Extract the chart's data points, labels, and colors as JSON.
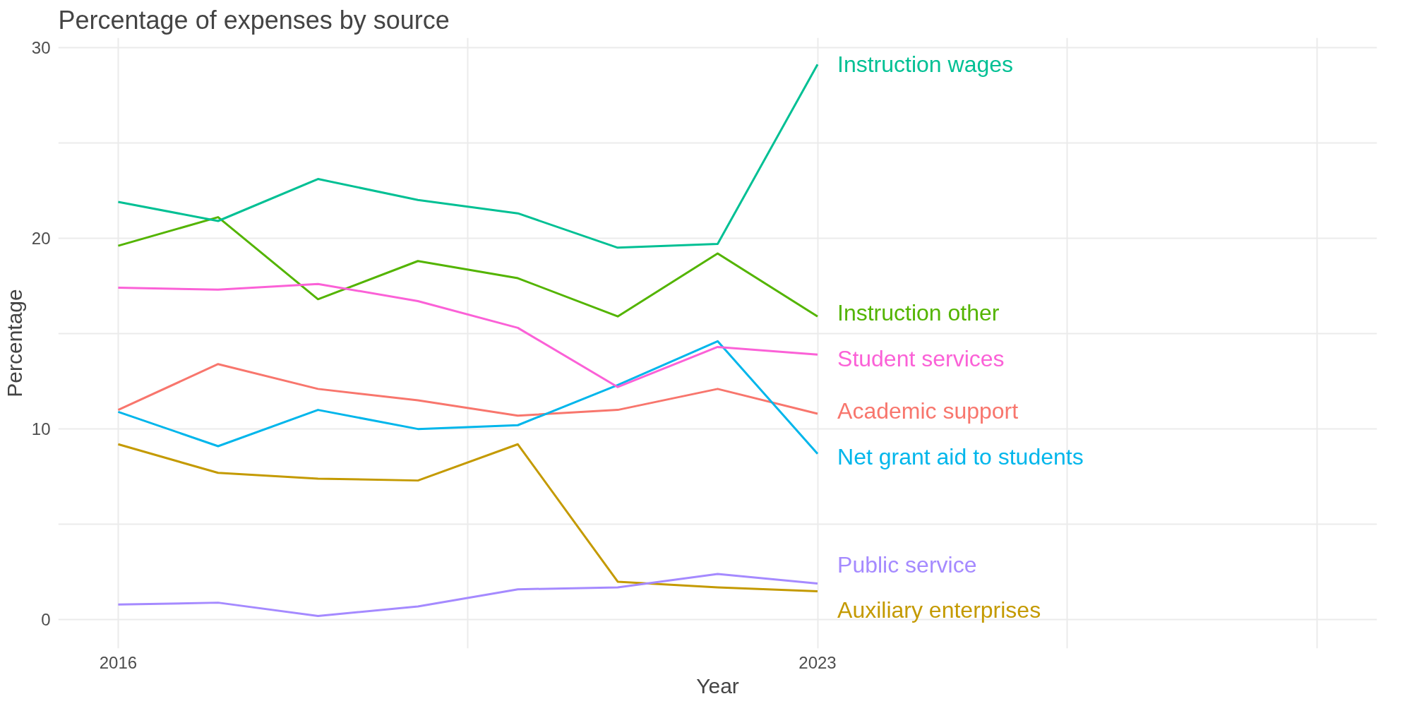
{
  "chart_data": {
    "type": "line",
    "title": "Percentage of expenses by source",
    "xlabel": "Year",
    "ylabel": "Percentage",
    "x": [
      2016,
      2017,
      2018,
      2019,
      2020,
      2021,
      2022,
      2023
    ],
    "xlim": [
      2015.4,
      2028.6
    ],
    "xticks": [
      2016,
      {
        "value": 2019.5,
        "label": null
      },
      2023,
      {
        "value": 2025.5,
        "label": null
      },
      {
        "value": 2028,
        "label": null
      }
    ],
    "ylim": [
      -1.5,
      30.5
    ],
    "yticks": [
      0,
      {
        "value": 5,
        "label": null
      },
      10,
      {
        "value": 15,
        "label": null
      },
      20,
      {
        "value": 25,
        "label": null
      },
      30
    ],
    "grid": true,
    "series": [
      {
        "name": "Academic support",
        "color": "#f8766d",
        "values": [
          11.0,
          13.4,
          12.1,
          11.5,
          10.7,
          11.0,
          12.1,
          10.8
        ]
      },
      {
        "name": "Auxiliary enterprises",
        "color": "#c49a00",
        "values": [
          9.2,
          7.7,
          7.4,
          7.3,
          9.2,
          2.0,
          1.7,
          1.5
        ]
      },
      {
        "name": "Instruction other",
        "color": "#53b400",
        "values": [
          19.6,
          21.1,
          16.8,
          18.8,
          17.9,
          15.9,
          19.2,
          15.9
        ]
      },
      {
        "name": "Instruction wages",
        "color": "#00c094",
        "values": [
          21.9,
          20.9,
          23.1,
          22.0,
          21.3,
          19.5,
          19.7,
          29.1
        ]
      },
      {
        "name": "Net grant aid to students",
        "color": "#00b6eb",
        "values": [
          10.9,
          9.1,
          11.0,
          10.0,
          10.2,
          12.3,
          14.6,
          8.7
        ]
      },
      {
        "name": "Public service",
        "color": "#a58aff",
        "values": [
          0.8,
          0.9,
          0.2,
          0.7,
          1.6,
          1.7,
          2.4,
          1.9
        ]
      },
      {
        "name": "Student services",
        "color": "#fb61d7",
        "values": [
          17.4,
          17.3,
          17.6,
          16.7,
          15.3,
          12.2,
          14.3,
          13.9
        ]
      }
    ]
  }
}
